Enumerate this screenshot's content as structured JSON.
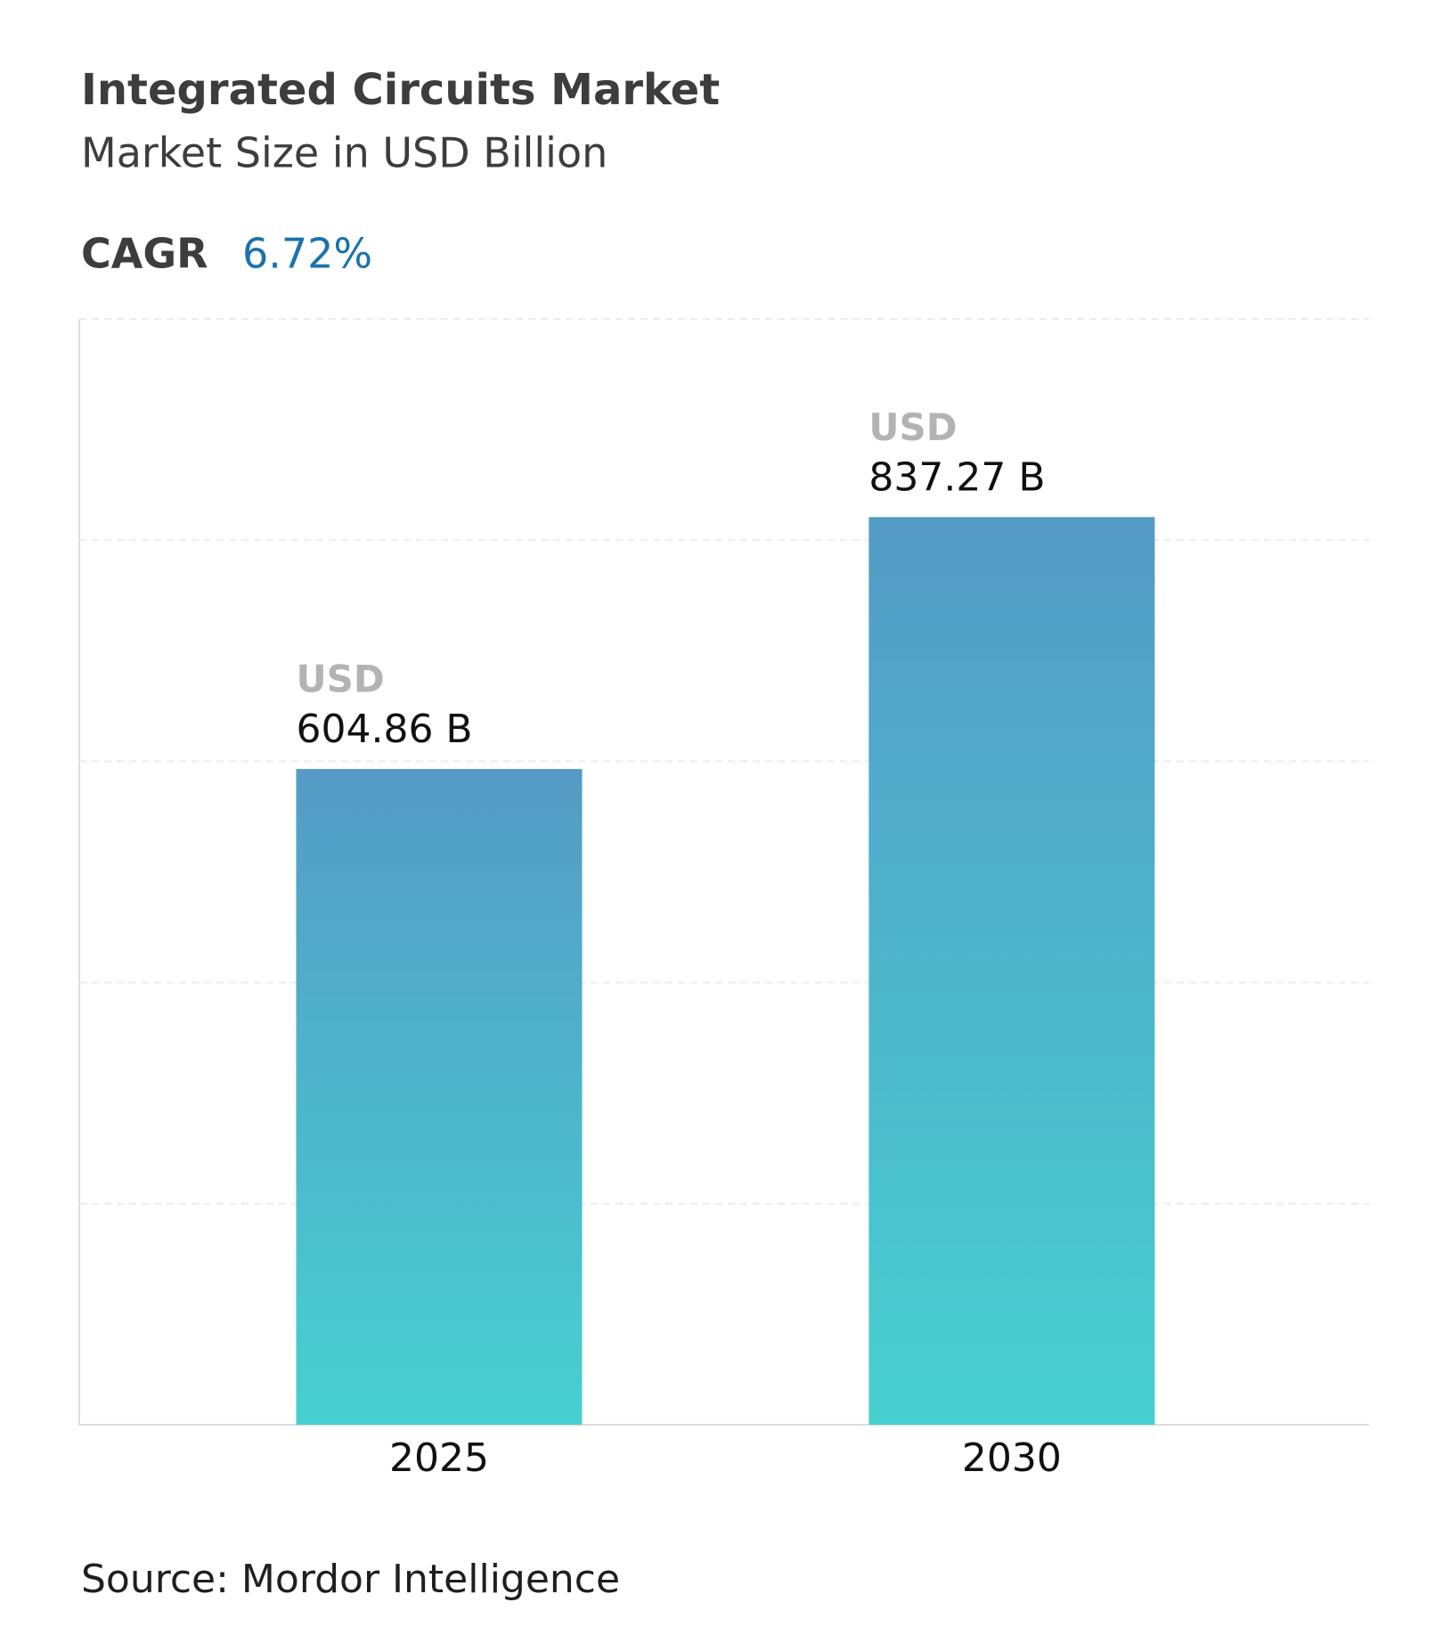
{
  "chart_data": {
    "type": "bar",
    "title": "Integrated Circuits Market",
    "subtitle": "Market Size in USD Billion",
    "cagr_label": "CAGR",
    "cagr_value": "6.72%",
    "categories": [
      "2025",
      "2030"
    ],
    "values": [
      604.86,
      837.27
    ],
    "value_labels": [
      "604.86 B",
      "837.27 B"
    ],
    "value_prefix": "USD",
    "gradient": [
      "#549bc6",
      "#47d0d0"
    ],
    "ylim": [
      0,
      1020
    ],
    "yticks": [
      0,
      204,
      408,
      612,
      816,
      1020
    ],
    "grid": true,
    "source": "Source: Mordor Intelligence"
  }
}
